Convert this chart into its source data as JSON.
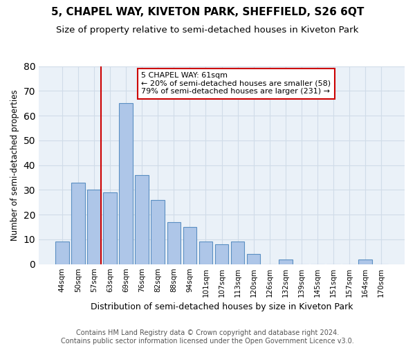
{
  "title": "5, CHAPEL WAY, KIVETON PARK, SHEFFIELD, S26 6QT",
  "subtitle": "Size of property relative to semi-detached houses in Kiveton Park",
  "xlabel": "Distribution of semi-detached houses by size in Kiveton Park",
  "ylabel": "Number of semi-detached properties",
  "categories": [
    "44sqm",
    "50sqm",
    "57sqm",
    "63sqm",
    "69sqm",
    "76sqm",
    "82sqm",
    "88sqm",
    "94sqm",
    "101sqm",
    "107sqm",
    "113sqm",
    "120sqm",
    "126sqm",
    "132sqm",
    "139sqm",
    "145sqm",
    "151sqm",
    "157sqm",
    "164sqm",
    "170sqm"
  ],
  "values": [
    9,
    33,
    30,
    29,
    65,
    36,
    26,
    17,
    15,
    9,
    8,
    9,
    4,
    0,
    2,
    0,
    0,
    0,
    0,
    2,
    0
  ],
  "bar_color": "#aec6e8",
  "bar_edge_color": "#5a8fc2",
  "grid_color": "#d0dce8",
  "background_color": "#eaf1f8",
  "vline_x_index": 2,
  "vline_color": "#cc0000",
  "annotation_text": "5 CHAPEL WAY: 61sqm\n← 20% of semi-detached houses are smaller (58)\n79% of semi-detached houses are larger (231) →",
  "annotation_box_color": "#ffffff",
  "annotation_box_edge": "#cc0000",
  "ylim": [
    0,
    80
  ],
  "yticks": [
    0,
    10,
    20,
    30,
    40,
    50,
    60,
    70,
    80
  ],
  "footer": "Contains HM Land Registry data © Crown copyright and database right 2024.\nContains public sector information licensed under the Open Government Licence v3.0.",
  "title_fontsize": 11,
  "subtitle_fontsize": 9.5,
  "xlabel_fontsize": 9,
  "ylabel_fontsize": 8.5,
  "tick_fontsize": 7.5,
  "footer_fontsize": 7,
  "annotation_fontsize": 8
}
